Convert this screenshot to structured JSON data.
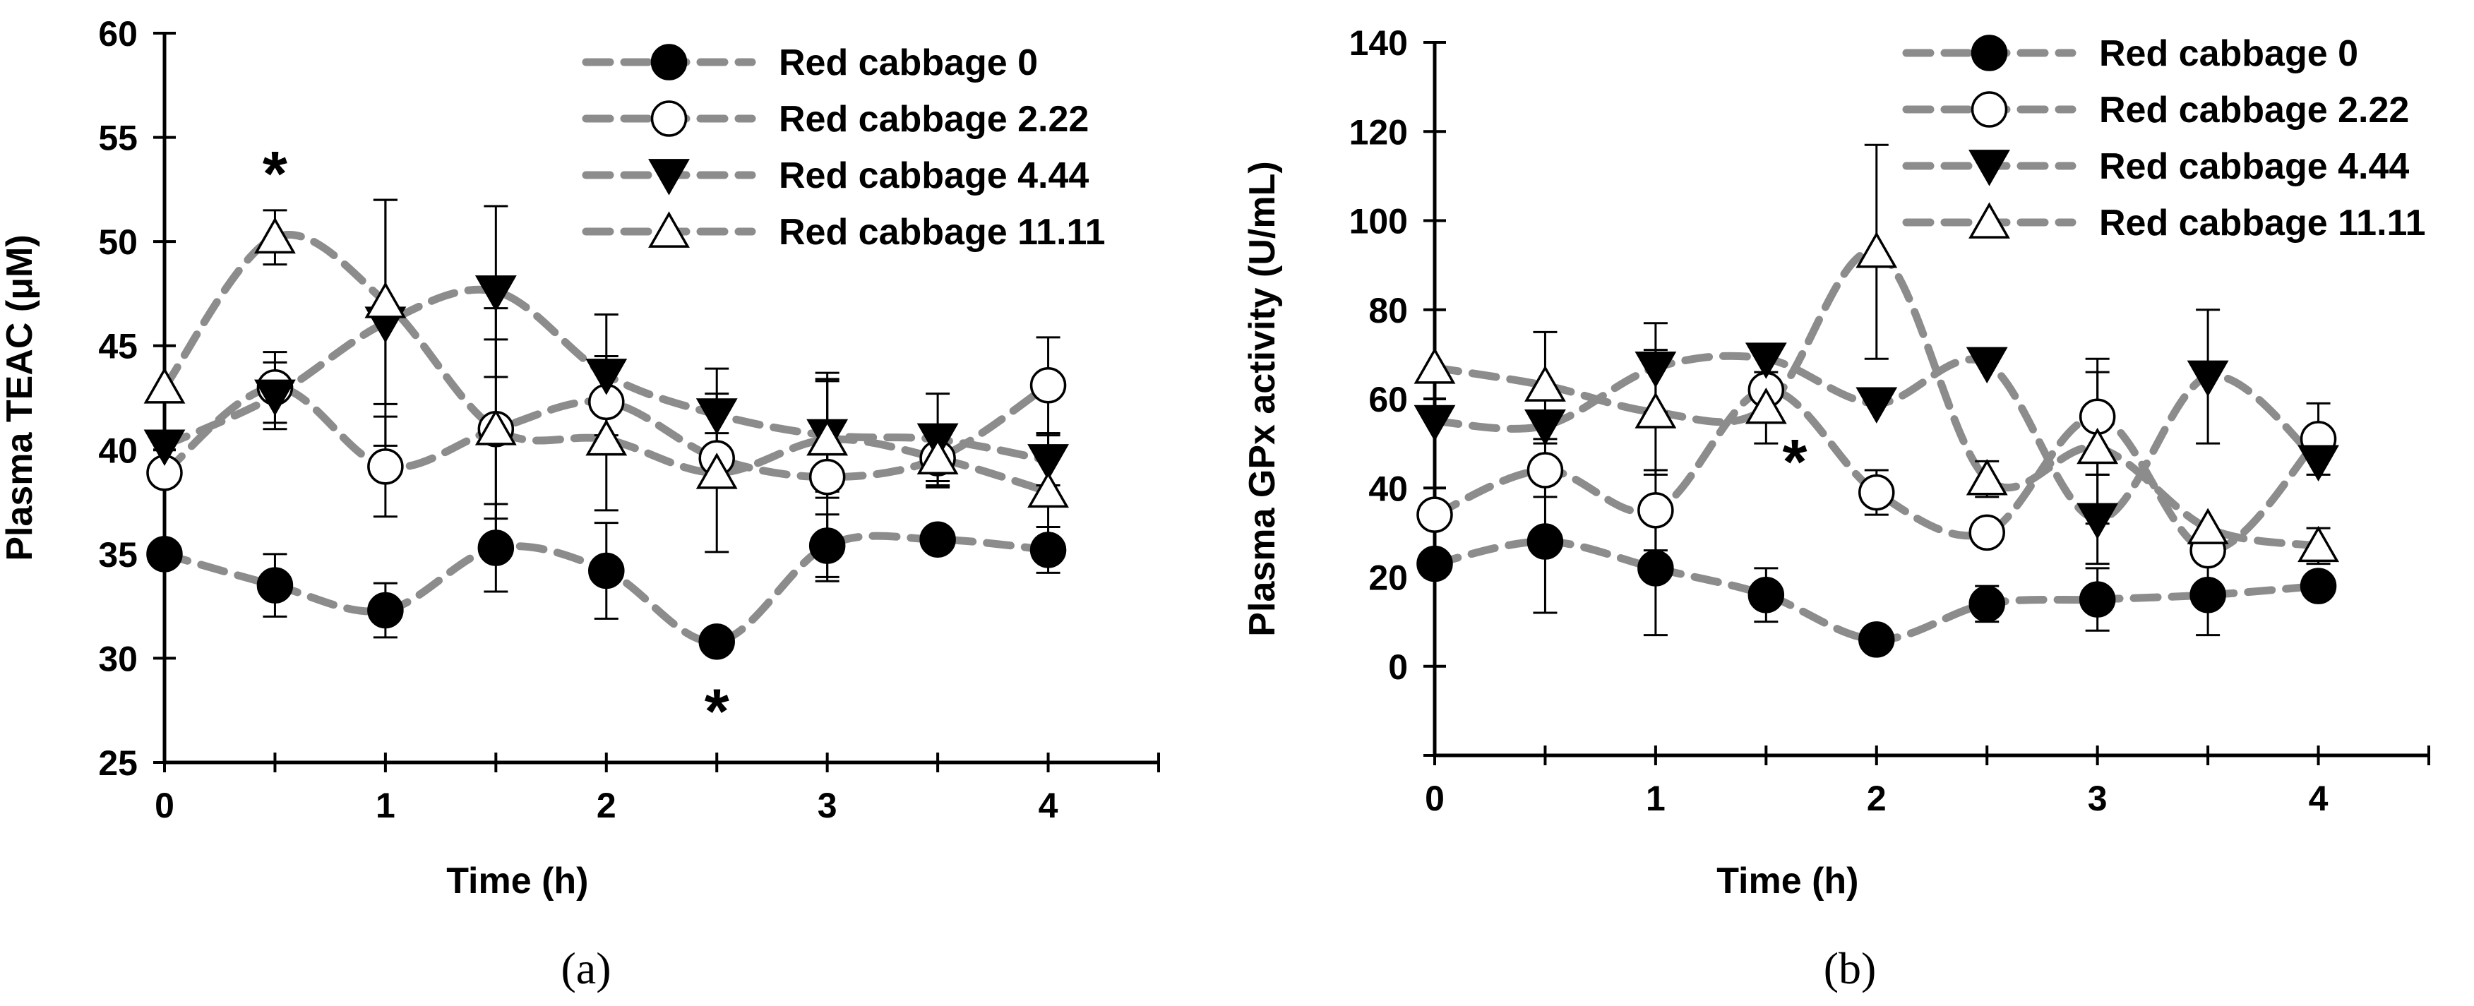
{
  "figure_captions": [
    "(a)",
    "(b)"
  ],
  "chart_data": [
    {
      "type": "line",
      "panel_label": "(a)",
      "title": "",
      "xlabel": "Time (h)",
      "ylabel": "Plasma TEAC (μM)",
      "xlim": [
        0,
        4.5
      ],
      "ylim": [
        25,
        60
      ],
      "xticks": [
        0,
        1,
        2,
        3,
        4
      ],
      "yticks": [
        25,
        30,
        35,
        40,
        45,
        50,
        55,
        60
      ],
      "x": [
        0,
        0.5,
        1,
        1.5,
        2,
        2.5,
        3,
        3.5,
        4
      ],
      "series": [
        {
          "name": "Red cabbage 0",
          "marker": "circle-filled",
          "values": [
            35.0,
            33.5,
            32.3,
            35.3,
            34.2,
            30.8,
            35.4,
            35.7,
            35.2
          ],
          "errors": [
            0,
            1.5,
            1.3,
            2.1,
            2.3,
            0.5,
            1.5,
            0.6,
            1.1
          ]
        },
        {
          "name": "Red cabbage 2.22",
          "marker": "circle-open",
          "values": [
            38.9,
            43.0,
            39.2,
            41.0,
            42.3,
            39.6,
            38.7,
            39.6,
            43.1
          ],
          "errors": [
            0,
            1.7,
            2.4,
            4.3,
            2.2,
            1.2,
            5.0,
            1.1,
            2.3
          ]
        },
        {
          "name": "Red cabbage 4.44",
          "marker": "triangle-down-filled",
          "values": [
            40.2,
            42.6,
            46.1,
            47.6,
            43.6,
            41.7,
            40.7,
            40.5,
            39.5
          ],
          "errors": [
            0,
            1.6,
            5.9,
            4.1,
            2.9,
            2.2,
            2.7,
            2.2,
            1.2
          ]
        },
        {
          "name": "Red cabbage 11.11",
          "marker": "triangle-up-open",
          "values": [
            43.0,
            50.2,
            47.1,
            41.0,
            40.5,
            38.9,
            40.5,
            39.6,
            38.0
          ],
          "errors": [
            0,
            1.3,
            4.9,
            5.8,
            3.4,
            3.8,
            2.8,
            1.4,
            2.8
          ]
        }
      ],
      "annotations": [
        {
          "text": "*",
          "x": 0.5,
          "y": 53.5
        },
        {
          "text": "*",
          "x": 2.5,
          "y": 27.7
        }
      ]
    },
    {
      "type": "line",
      "panel_label": "(b)",
      "title": "",
      "xlabel": "Time (h)",
      "ylabel": "Plasma GPx activity (U/mL)",
      "xlim": [
        0,
        4.5
      ],
      "ylim": [
        -20,
        140
      ],
      "xticks": [
        0,
        1,
        2,
        3,
        4
      ],
      "yticks": [
        0,
        20,
        40,
        60,
        80,
        100,
        120,
        140
      ],
      "x": [
        0,
        0.5,
        1,
        1.5,
        2,
        2.5,
        3,
        3.5,
        4
      ],
      "series": [
        {
          "name": "Red cabbage 0",
          "marker": "circle-filled",
          "values": [
            23,
            28,
            22,
            16,
            6,
            14,
            15,
            16,
            18
          ],
          "errors": [
            0,
            16,
            15,
            6,
            0,
            4,
            7,
            9,
            0
          ]
        },
        {
          "name": "Red cabbage 2.22",
          "marker": "circle-open",
          "values": [
            34,
            44,
            35,
            62,
            39,
            30,
            56,
            26,
            51
          ],
          "errors": [
            0,
            6,
            9,
            0,
            5,
            0,
            13,
            0,
            8
          ]
        },
        {
          "name": "Red cabbage 4.44",
          "marker": "triangle-down-filled",
          "values": [
            55,
            54,
            67,
            69,
            59,
            68,
            33,
            65,
            46
          ],
          "errors": [
            0,
            0,
            10,
            0,
            0,
            0,
            10,
            15,
            0
          ]
        },
        {
          "name": "Red cabbage 11.11",
          "marker": "triangle-up-open",
          "values": [
            67,
            63,
            57,
            58,
            93,
            42,
            49,
            31,
            27
          ],
          "errors": [
            0,
            12,
            14,
            8,
            24,
            4,
            17,
            0,
            4
          ]
        }
      ],
      "annotations": [
        {
          "text": "*",
          "x": 1.63,
          "y": 47
        }
      ]
    }
  ]
}
